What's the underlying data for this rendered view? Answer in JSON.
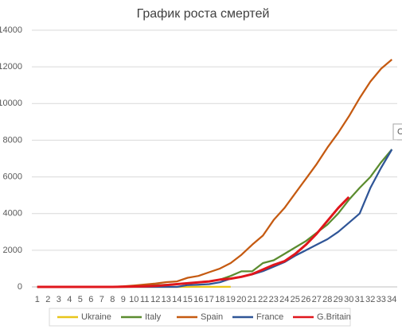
{
  "chart_data": {
    "type": "line",
    "title": "График роста смертей",
    "annotation": "C",
    "categories": [
      "1",
      "2",
      "3",
      "4",
      "5",
      "6",
      "7",
      "8",
      "9",
      "10",
      "11",
      "12",
      "13",
      "14",
      "15",
      "16",
      "17",
      "18",
      "19",
      "20",
      "21",
      "22",
      "23",
      "24",
      "25",
      "26",
      "27",
      "28",
      "29",
      "30",
      "31",
      "32",
      "33",
      "34"
    ],
    "ylim": [
      0,
      14000
    ],
    "yticks": [
      0,
      2000,
      4000,
      6000,
      8000,
      10000,
      12000,
      14000
    ],
    "grid": true,
    "legend": "bottom",
    "series": [
      {
        "name": "Ukraine",
        "color": "#e8c51a",
        "values": [
          0,
          0,
          0,
          0,
          0,
          0,
          0,
          0,
          0,
          0,
          0,
          0,
          0,
          1,
          2,
          3,
          3,
          4,
          5,
          null,
          null,
          null,
          null,
          null,
          null,
          null,
          null,
          null,
          null,
          null,
          null,
          null,
          null,
          null
        ]
      },
      {
        "name": "Italy",
        "color": "#5b8c2f",
        "values": [
          0,
          0,
          0,
          0,
          0,
          0,
          0,
          0,
          20,
          40,
          60,
          90,
          120,
          150,
          200,
          250,
          300,
          400,
          600,
          850,
          850,
          1300,
          1450,
          1800,
          2150,
          2500,
          2950,
          3400,
          4000,
          4750,
          5400,
          6000,
          6800,
          7500
        ]
      },
      {
        "name": "Spain",
        "color": "#c55a11",
        "values": [
          0,
          0,
          0,
          0,
          0,
          0,
          0,
          0,
          30,
          80,
          130,
          180,
          260,
          300,
          500,
          600,
          800,
          1000,
          1300,
          1750,
          2300,
          2800,
          3650,
          4300,
          5100,
          5900,
          6700,
          7600,
          8400,
          9300,
          10300,
          11200,
          11900,
          12400
        ]
      },
      {
        "name": "France",
        "color": "#2f5597",
        "values": [
          0,
          0,
          0,
          0,
          0,
          0,
          0,
          0,
          0,
          0,
          0,
          0,
          0,
          0,
          100,
          120,
          150,
          250,
          450,
          560,
          680,
          860,
          1100,
          1350,
          1700,
          2000,
          2300,
          2600,
          3000,
          3500,
          4000,
          5400,
          6500,
          7500
        ]
      },
      {
        "name": "G.Britain",
        "color": "#e0161c",
        "values": [
          0,
          0,
          0,
          0,
          0,
          0,
          0,
          0,
          10,
          20,
          30,
          50,
          100,
          150,
          200,
          250,
          300,
          400,
          450,
          550,
          700,
          950,
          1200,
          1400,
          1800,
          2300,
          2900,
          3600,
          4300,
          4900,
          null,
          null,
          null,
          null
        ]
      }
    ]
  }
}
